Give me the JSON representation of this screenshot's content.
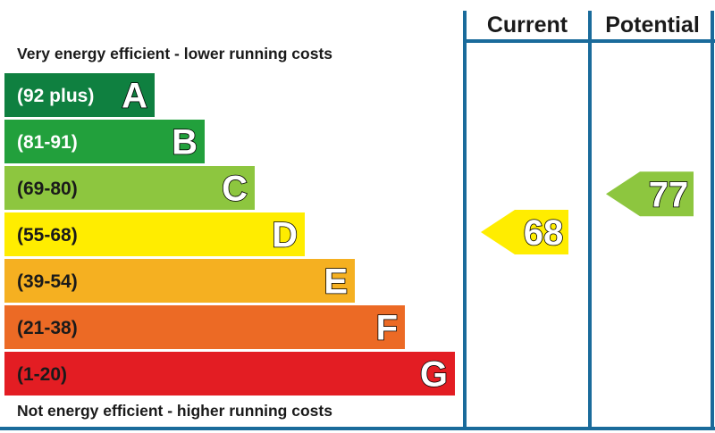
{
  "chart_data": {
    "type": "bar",
    "caption_top": "Very energy efficient - lower running costs",
    "caption_bottom": "Not energy efficient - higher running costs",
    "columns": {
      "current": "Current",
      "potential": "Potential"
    },
    "bands": [
      {
        "letter": "A",
        "range": "(92 plus)",
        "min": 92,
        "max": 100,
        "color": "#0f8040",
        "text_color": "#ffffff"
      },
      {
        "letter": "B",
        "range": "(81-91)",
        "min": 81,
        "max": 91,
        "color": "#22a03c",
        "text_color": "#ffffff"
      },
      {
        "letter": "C",
        "range": "(69-80)",
        "min": 69,
        "max": 80,
        "color": "#8dc63f",
        "text_color": "#1a1a1a"
      },
      {
        "letter": "D",
        "range": "(55-68)",
        "min": 55,
        "max": 68,
        "color": "#ffed00",
        "text_color": "#1a1a1a"
      },
      {
        "letter": "E",
        "range": "(39-54)",
        "min": 39,
        "max": 54,
        "color": "#f5b021",
        "text_color": "#1a1a1a"
      },
      {
        "letter": "F",
        "range": "(21-38)",
        "min": 21,
        "max": 38,
        "color": "#ec6a25",
        "text_color": "#1a1a1a"
      },
      {
        "letter": "G",
        "range": "(1-20)",
        "min": 1,
        "max": 20,
        "color": "#e31d23",
        "text_color": "#1a1a1a"
      }
    ],
    "current": {
      "value": 68,
      "label": "68",
      "band": "D",
      "color": "#ffed00"
    },
    "potential": {
      "value": 77,
      "label": "77",
      "band": "C",
      "color": "#8dc63f"
    },
    "frame_color": "#1a6b9b"
  }
}
